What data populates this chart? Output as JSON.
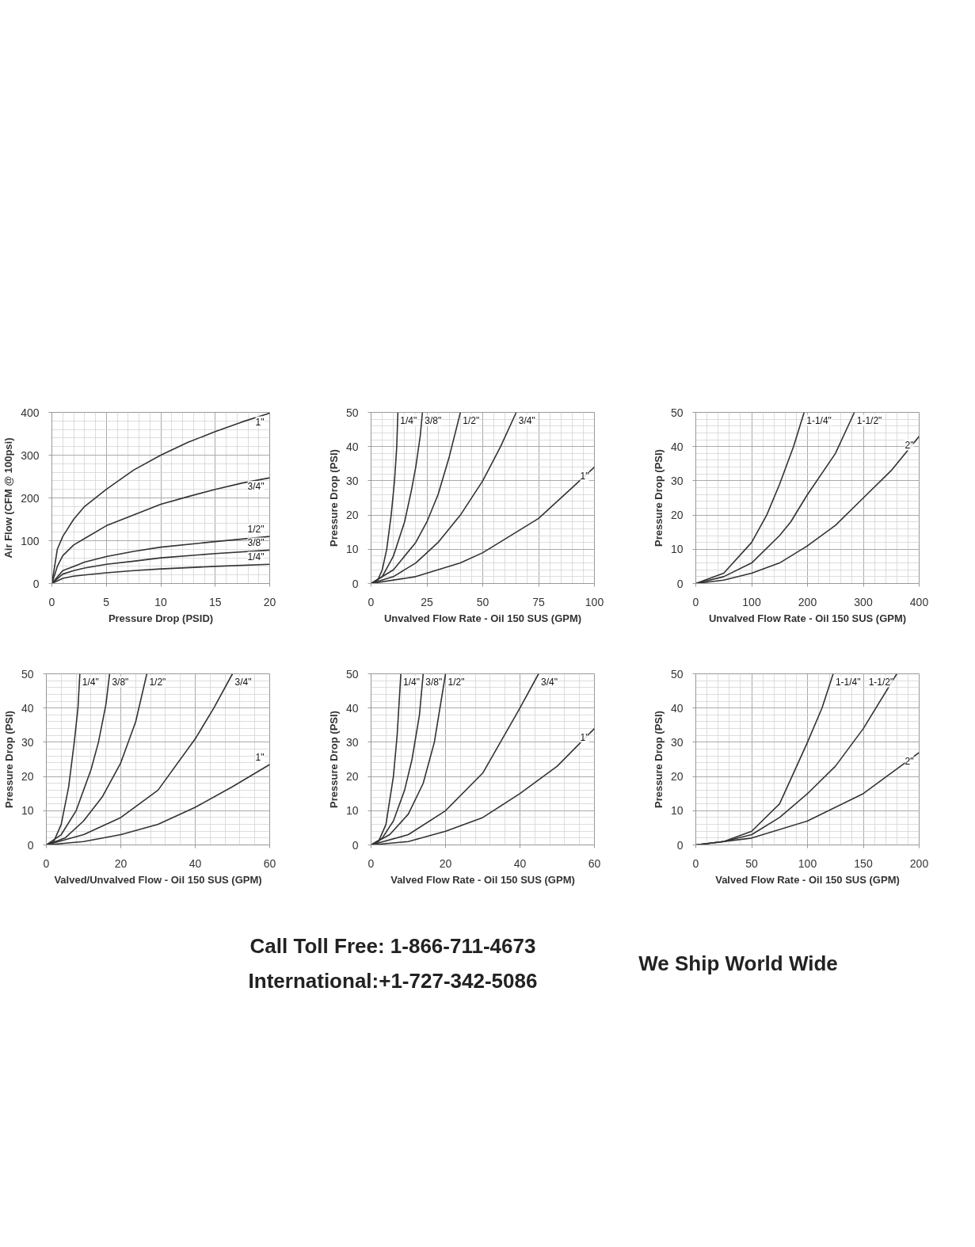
{
  "chart_data": [
    {
      "type": "line",
      "xlabel": "Pressure Drop (PSID)",
      "ylabel": "Air Flow (CFM @ 100psi)",
      "xlim": [
        0,
        20
      ],
      "ylim": [
        0,
        400
      ],
      "xticks": [
        0,
        5,
        10,
        15,
        20
      ],
      "yticks": [
        0,
        100,
        200,
        300,
        400
      ],
      "grid": true,
      "series": [
        {
          "name": "1\"",
          "color": "#333333",
          "x": [
            0,
            0.5,
            1,
            2,
            3,
            5,
            7.5,
            10,
            12.5,
            15,
            17.5,
            20
          ],
          "values": [
            0,
            80,
            110,
            150,
            180,
            220,
            265,
            300,
            330,
            355,
            378,
            398
          ]
        },
        {
          "name": "3/4\"",
          "color": "#333333",
          "x": [
            0,
            0.5,
            1,
            2,
            3,
            5,
            7.5,
            10,
            12.5,
            15,
            17.5,
            20
          ],
          "values": [
            0,
            40,
            65,
            90,
            105,
            135,
            160,
            185,
            203,
            220,
            235,
            247
          ]
        },
        {
          "name": "1/2\"",
          "color": "#333333",
          "x": [
            0,
            1,
            2,
            3,
            5,
            7.5,
            10,
            15,
            20
          ],
          "values": [
            0,
            30,
            40,
            50,
            63,
            75,
            85,
            98,
            110
          ]
        },
        {
          "name": "3/8\"",
          "color": "#333333",
          "x": [
            0,
            1,
            2,
            3,
            5,
            7.5,
            10,
            15,
            20
          ],
          "values": [
            0,
            22,
            30,
            36,
            45,
            52,
            60,
            70,
            78
          ]
        },
        {
          "name": "1/4\"",
          "color": "#333333",
          "x": [
            0,
            1,
            2,
            3,
            5,
            7.5,
            10,
            15,
            20
          ],
          "values": [
            0,
            12,
            17,
            20,
            25,
            30,
            34,
            40,
            45
          ]
        }
      ]
    },
    {
      "type": "line",
      "xlabel": "Unvalved Flow Rate - Oil 150 SUS (GPM)",
      "ylabel": "Pressure Drop (PSI)",
      "xlim": [
        0,
        100
      ],
      "ylim": [
        0,
        50
      ],
      "xticks": [
        0,
        25,
        50,
        75,
        100
      ],
      "yticks": [
        0,
        10,
        20,
        30,
        40,
        50
      ],
      "grid": true,
      "series": [
        {
          "name": "1/4\"",
          "color": "#333333",
          "x": [
            0,
            3,
            5,
            7,
            9,
            10.5,
            11.5,
            12
          ],
          "values": [
            0,
            1,
            4,
            10,
            20,
            30,
            40,
            50
          ]
        },
        {
          "name": "3/8\"",
          "color": "#333333",
          "x": [
            0,
            5,
            10,
            15,
            18,
            20,
            22,
            23
          ],
          "values": [
            0,
            2,
            8,
            18,
            27,
            34,
            43,
            50
          ]
        },
        {
          "name": "1/2\"",
          "color": "#333333",
          "x": [
            0,
            10,
            20,
            25,
            30,
            35,
            40
          ],
          "values": [
            0,
            4,
            12,
            18,
            26,
            37,
            50
          ]
        },
        {
          "name": "3/4\"",
          "color": "#333333",
          "x": [
            0,
            10,
            20,
            30,
            40,
            50,
            58,
            65
          ],
          "values": [
            0,
            2,
            6,
            12,
            20,
            30,
            40,
            50
          ]
        },
        {
          "name": "1\"",
          "color": "#333333",
          "x": [
            0,
            20,
            40,
            50,
            60,
            75,
            90,
            100
          ],
          "values": [
            0,
            2,
            6,
            9,
            13,
            19,
            28,
            34
          ]
        }
      ]
    },
    {
      "type": "line",
      "xlabel": "Unvalved Flow Rate - Oil 150 SUS (GPM)",
      "ylabel": "Pressure Drop (PSI)",
      "xlim": [
        0,
        400
      ],
      "ylim": [
        0,
        50
      ],
      "xticks": [
        0,
        100,
        200,
        300,
        400
      ],
      "yticks": [
        0,
        10,
        20,
        30,
        40,
        50
      ],
      "grid": true,
      "series": [
        {
          "name": "1-1/4\"",
          "color": "#333333",
          "x": [
            0,
            50,
            100,
            127,
            150,
            175,
            194
          ],
          "values": [
            0,
            3,
            12,
            20,
            29,
            40,
            50
          ]
        },
        {
          "name": "1-1/2\"",
          "color": "#333333",
          "x": [
            0,
            50,
            100,
            150,
            170,
            200,
            250,
            284
          ],
          "values": [
            0,
            2,
            6,
            14,
            18,
            26,
            38,
            50
          ]
        },
        {
          "name": "2\"",
          "color": "#333333",
          "x": [
            0,
            50,
            100,
            150,
            200,
            250,
            300,
            350,
            400
          ],
          "values": [
            0,
            1,
            3,
            6,
            11,
            17,
            25,
            33,
            43
          ]
        }
      ]
    },
    {
      "type": "line",
      "xlabel": "Valved/Unvalved Flow - Oil 150 SUS (GPM)",
      "ylabel": "Pressure Drop (PSI)",
      "xlim": [
        0,
        60
      ],
      "ylim": [
        0,
        50
      ],
      "xticks": [
        0,
        20,
        40,
        60
      ],
      "yticks": [
        0,
        10,
        20,
        30,
        40,
        50
      ],
      "grid": true,
      "series": [
        {
          "name": "1/4\"",
          "color": "#333333",
          "x": [
            0,
            2,
            4,
            6,
            7.5,
            8.5,
            9
          ],
          "values": [
            0,
            1,
            6,
            17,
            30,
            40,
            50
          ]
        },
        {
          "name": "3/8\"",
          "color": "#333333",
          "x": [
            0,
            4,
            8,
            12,
            14,
            16,
            17
          ],
          "values": [
            0,
            3,
            10,
            22,
            30,
            41,
            50
          ]
        },
        {
          "name": "1/2\"",
          "color": "#333333",
          "x": [
            0,
            5,
            10,
            15,
            20,
            24,
            27
          ],
          "values": [
            0,
            2,
            7,
            14,
            24,
            36,
            50
          ]
        },
        {
          "name": "3/4\"",
          "color": "#333333",
          "x": [
            0,
            10,
            20,
            30,
            40,
            45,
            50
          ],
          "values": [
            0,
            3,
            8,
            16,
            31,
            40,
            50
          ]
        },
        {
          "name": "1\"",
          "color": "#333333",
          "x": [
            0,
            10,
            20,
            30,
            40,
            50,
            60
          ],
          "values": [
            0,
            1,
            3,
            6,
            11,
            17,
            23.5
          ]
        }
      ]
    },
    {
      "type": "line",
      "xlabel": "Valved Flow Rate - Oil 150 SUS (GPM)",
      "ylabel": "Pressure Drop (PSI)",
      "xlim": [
        0,
        60
      ],
      "ylim": [
        0,
        50
      ],
      "xticks": [
        0,
        20,
        40,
        60
      ],
      "yticks": [
        0,
        10,
        20,
        30,
        40,
        50
      ],
      "grid": true,
      "series": [
        {
          "name": "1/4\"",
          "color": "#333333",
          "x": [
            0,
            2,
            4,
            6,
            7,
            8
          ],
          "values": [
            0,
            1,
            6,
            20,
            32,
            50
          ]
        },
        {
          "name": "3/8\"",
          "color": "#333333",
          "x": [
            0,
            3,
            6,
            9,
            11,
            13,
            14
          ],
          "values": [
            0,
            2,
            7,
            16,
            25,
            38,
            50
          ]
        },
        {
          "name": "1/2\"",
          "color": "#333333",
          "x": [
            0,
            5,
            10,
            14,
            17,
            20
          ],
          "values": [
            0,
            3,
            9,
            18,
            30,
            50
          ]
        },
        {
          "name": "3/4\"",
          "color": "#333333",
          "x": [
            0,
            10,
            20,
            30,
            40,
            45
          ],
          "values": [
            0,
            3,
            10,
            21,
            40,
            50
          ]
        },
        {
          "name": "1\"",
          "color": "#333333",
          "x": [
            0,
            10,
            20,
            30,
            40,
            50,
            60
          ],
          "values": [
            0,
            1,
            4,
            8,
            15,
            23,
            34
          ]
        }
      ]
    },
    {
      "type": "line",
      "xlabel": "Valved Flow Rate - Oil 150 SUS (GPM)",
      "ylabel": "Pressure Drop (PSI)",
      "xlim": [
        0,
        200
      ],
      "ylim": [
        0,
        50
      ],
      "xticks": [
        0,
        50,
        100,
        150,
        200
      ],
      "yticks": [
        0,
        10,
        20,
        30,
        40,
        50
      ],
      "grid": true,
      "series": [
        {
          "name": "1-1/4\"",
          "color": "#333333",
          "x": [
            0,
            25,
            50,
            75,
            100,
            113,
            123
          ],
          "values": [
            0,
            1,
            4,
            12,
            30,
            40,
            50
          ]
        },
        {
          "name": "1-1/2\"",
          "color": "#333333",
          "x": [
            0,
            25,
            50,
            75,
            100,
            125,
            150,
            180
          ],
          "values": [
            0,
            1,
            3,
            8,
            15,
            23,
            34,
            50
          ]
        },
        {
          "name": "2\"",
          "color": "#333333",
          "x": [
            0,
            50,
            100,
            150,
            200
          ],
          "values": [
            0,
            2,
            7,
            15,
            27
          ]
        }
      ]
    },
    {
      "type": "other",
      "annotations": [
        "Call Toll Free: 1-866-711-4673",
        "International:+1-727-342-5086",
        "We Ship World Wide"
      ]
    }
  ]
}
